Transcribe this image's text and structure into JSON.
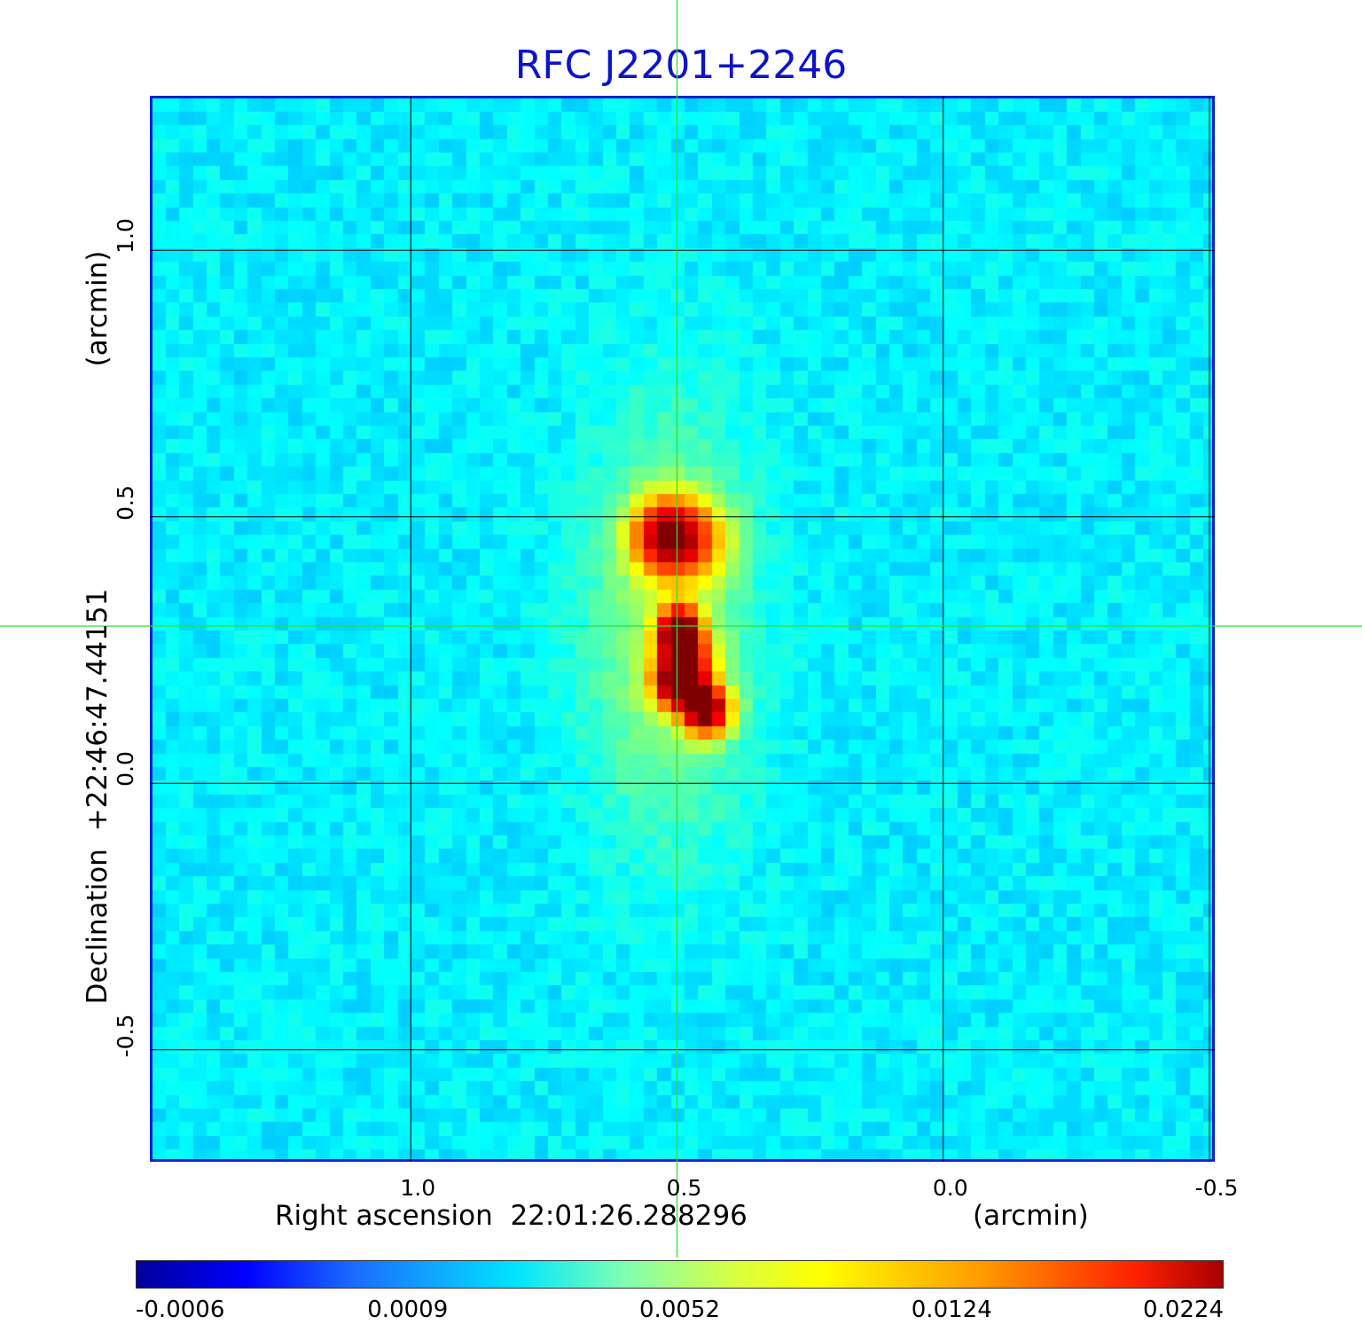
{
  "chart_data": {
    "type": "heatmap",
    "title": "RFC J2201+2246",
    "xlabel": "Right ascension  22:01:26.288296",
    "xlabel_unit": "(arcmin)",
    "ylabel": "Declination  +22:46:47.44151",
    "ylabel_unit": "(arcmin)",
    "x_ticks": [
      "1.0",
      "0.5",
      "0.0",
      "-0.5"
    ],
    "x_tick_values": [
      1.0,
      0.5,
      0.0,
      -0.5
    ],
    "y_ticks": [
      "1.0",
      "0.5",
      "0.0",
      "-0.5"
    ],
    "y_tick_values": [
      1.0,
      0.5,
      0.0,
      -0.5
    ],
    "xlim": [
      1.49,
      -0.51
    ],
    "ylim": [
      -0.71,
      1.29
    ],
    "grid": true,
    "crosshair": {
      "x": 0.5,
      "y": 0.295
    },
    "colormap": "jet",
    "colorbar_ticks": [
      "-0.0006",
      "0.0009",
      "0.0052",
      "0.0124",
      "0.0224"
    ],
    "colorbar_range": [
      -0.0006,
      0.0224
    ],
    "sources": [
      {
        "x": 0.49,
        "y": 0.46,
        "peak": 0.0124,
        "sx": 0.05,
        "sy": 0.05
      },
      {
        "x": 0.53,
        "y": 0.47,
        "peak": 0.0112,
        "sx": 0.04,
        "sy": 0.045
      },
      {
        "x": 0.5,
        "y": 0.29,
        "peak": 0.0224,
        "sx": 0.025,
        "sy": 0.03
      },
      {
        "x": 0.49,
        "y": 0.23,
        "peak": 0.015,
        "sx": 0.035,
        "sy": 0.045
      },
      {
        "x": 0.5,
        "y": 0.19,
        "peak": 0.018,
        "sx": 0.03,
        "sy": 0.03
      },
      {
        "x": 0.45,
        "y": 0.14,
        "peak": 0.0224,
        "sx": 0.03,
        "sy": 0.03
      },
      {
        "x": 0.52,
        "y": 0.3,
        "peak": 0.003,
        "sx": 0.1,
        "sy": 0.25
      }
    ],
    "noise_level": 0.0009
  }
}
